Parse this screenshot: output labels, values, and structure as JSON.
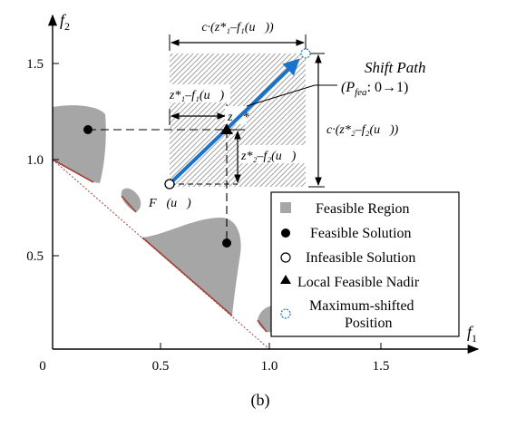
{
  "axes": {
    "x_label": "f",
    "x_sub": "1",
    "y_label": "f",
    "y_sub": "2",
    "x_ticks": [
      "0",
      "0.5",
      "1.0",
      "1.5"
    ],
    "y_ticks": [
      "0.5",
      "1.0",
      "1.5"
    ]
  },
  "annotations": {
    "shift_path_title": "Shift Path",
    "shift_path_sub": "(P",
    "shift_path_sub_idx": "fea",
    "shift_path_range": ": 0→1)",
    "top_width": "c·(z*₁–f₁(u⃗))",
    "right_height": "c·(z*₂–f₂(u⃗))",
    "inner_width": "z*₁–f₁(u⃗)",
    "inner_height": "z*₂–f₂(u⃗)",
    "z_star": "z⃗*",
    "f_u": "F⃗(u⃗)"
  },
  "legend": {
    "feasible_region": "Feasible Region",
    "feasible_solution": "Feasible Solution",
    "infeasible_solution": "Infeasible Solution",
    "local_nadir": "Local Feasible Nadir",
    "max_shift_line1": "Maximum-shifted",
    "max_shift_line2": "Position"
  },
  "caption": "(b)",
  "colors": {
    "region": "#a6a6a6",
    "front": "#a0433a",
    "arrow": "#1a73c8",
    "hatch": "#8a8a8a"
  }
}
